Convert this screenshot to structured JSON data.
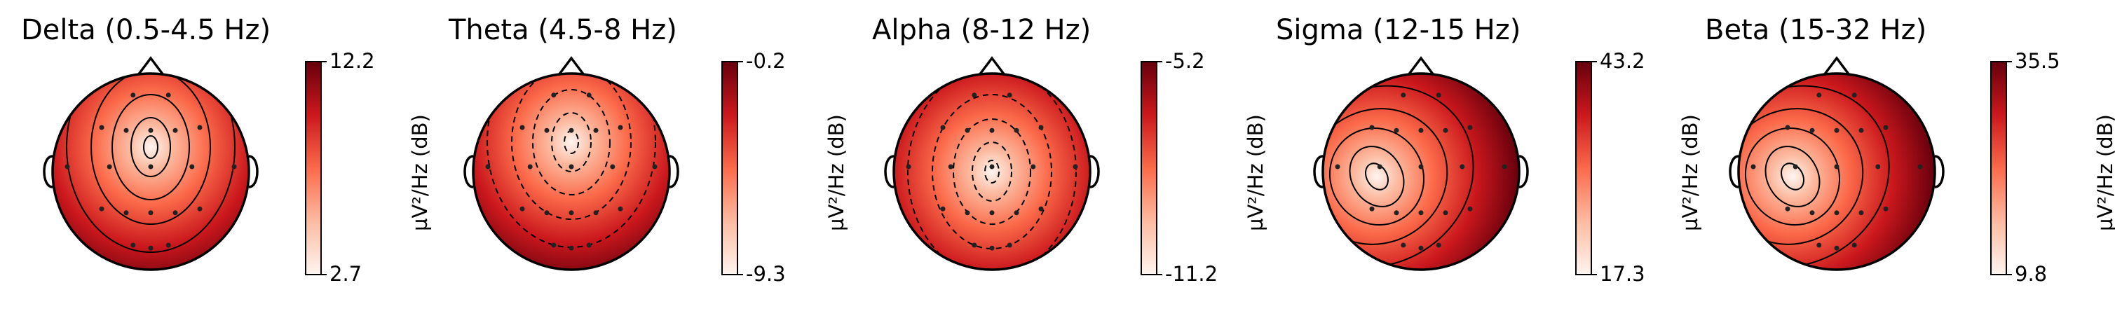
{
  "chart_data": [
    {
      "type": "heatmap",
      "subtype": "topomap",
      "title": "Delta (0.5-4.5 Hz)",
      "colorbar": {
        "label": "µV²/Hz (dB)",
        "max_label": "12.2",
        "min_label": "2.7",
        "max": 12.2,
        "min": 2.7
      },
      "colormap": "Reds",
      "low_region": "central-frontal",
      "low_region_center": [
        0.0,
        0.25
      ],
      "contour_styles": [
        "solid"
      ]
    },
    {
      "type": "heatmap",
      "subtype": "topomap",
      "title": "Theta (4.5-8 Hz)",
      "colorbar": {
        "label": "µV²/Hz (dB)",
        "max_label": "-0.2",
        "min_label": "-9.3",
        "max": -0.2,
        "min": -9.3
      },
      "colormap": "Reds",
      "low_region": "central-frontal",
      "low_region_center": [
        0.0,
        0.3
      ],
      "contour_styles": [
        "dashed"
      ]
    },
    {
      "type": "heatmap",
      "subtype": "topomap",
      "title": "Alpha (8-12 Hz)",
      "colorbar": {
        "label": "µV²/Hz (dB)",
        "max_label": "-5.2",
        "min_label": "-11.2",
        "max": -5.2,
        "min": -11.2
      },
      "colormap": "Reds",
      "low_region": "central",
      "low_region_center": [
        0.0,
        0.0
      ],
      "contour_styles": [
        "dashed"
      ]
    },
    {
      "type": "heatmap",
      "subtype": "topomap",
      "title": "Sigma (12-15 Hz)",
      "colorbar": {
        "label": "µV²/Hz (dB)",
        "max_label": "43.2",
        "min_label": "17.3",
        "max": 43.2,
        "min": 17.3
      },
      "colormap": "Reds",
      "low_region": "left-central",
      "low_region_center": [
        -0.45,
        -0.05
      ],
      "contour_styles": [
        "solid"
      ]
    },
    {
      "type": "heatmap",
      "subtype": "topomap",
      "title": "Beta (15-32 Hz)",
      "colorbar": {
        "label": "µV²/Hz (dB)",
        "max_label": "35.5",
        "min_label": "9.8",
        "max": 35.5,
        "min": 9.8
      },
      "colormap": "Reds",
      "low_region": "left-central",
      "low_region_center": [
        -0.45,
        -0.05
      ],
      "contour_styles": [
        "solid"
      ]
    }
  ]
}
